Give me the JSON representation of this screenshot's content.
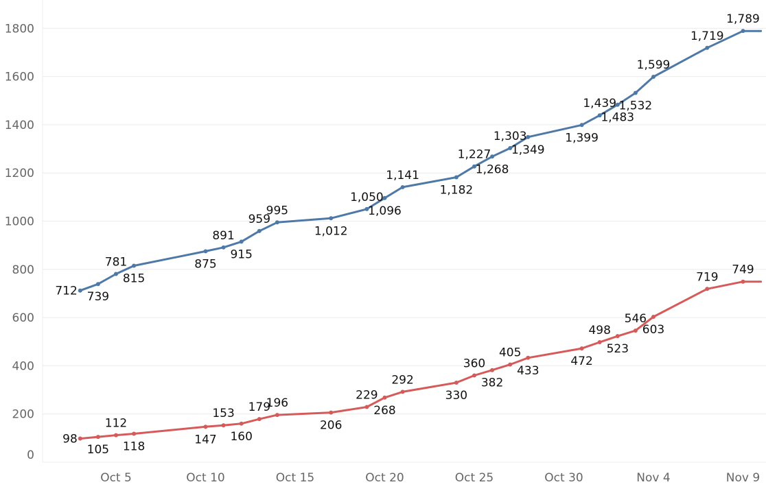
{
  "chart_data": {
    "type": "line",
    "title": "",
    "xlabel": "",
    "ylabel": "",
    "ylim": [
      0,
      1850
    ],
    "xlim": [
      "Oct 2",
      "Nov 10"
    ],
    "grid": true,
    "legend": "none",
    "y_ticks": [
      "0",
      "200",
      "400",
      "600",
      "800",
      "1000",
      "1200",
      "1400",
      "1600",
      "1800"
    ],
    "x_ticks": [
      {
        "date": "Oct 5",
        "label": "Oct 5"
      },
      {
        "date": "Oct 10",
        "label": "Oct 10"
      },
      {
        "date": "Oct 15",
        "label": "Oct 15"
      },
      {
        "date": "Oct 20",
        "label": "Oct 20"
      },
      {
        "date": "Oct 25",
        "label": "Oct 25"
      },
      {
        "date": "Oct 30",
        "label": "Oct 30"
      },
      {
        "date": "Nov 4",
        "label": "Nov 4"
      },
      {
        "date": "Nov 9",
        "label": "Nov 9"
      }
    ],
    "x": [
      "Oct 3",
      "Oct 4",
      "Oct 5",
      "Oct 6",
      "Oct 10",
      "Oct 11",
      "Oct 12",
      "Oct 13",
      "Oct 14",
      "Oct 17",
      "Oct 19",
      "Oct 20",
      "Oct 21",
      "Oct 24",
      "Oct 25",
      "Oct 26",
      "Oct 27",
      "Oct 28",
      "Oct 31",
      "Nov 1",
      "Nov 2",
      "Nov 3",
      "Nov 4",
      "Nov 7",
      "Nov 9",
      "Nov 10"
    ],
    "series": [
      {
        "color": "#4e79a7",
        "values": [
          712,
          739,
          781,
          815,
          875,
          891,
          915,
          959,
          995,
          1012,
          1050,
          1096,
          1141,
          1182,
          1227,
          1268,
          1303,
          1349,
          1399,
          1439,
          1483,
          1532,
          1599,
          1719,
          1789,
          1789
        ],
        "labels": [
          "712",
          "739",
          "781",
          "815",
          "875",
          "891",
          "915",
          "959",
          "995",
          "1,012",
          "1,050",
          "1,096",
          "1,141",
          "1,182",
          "1,227",
          "1,268",
          "1,303",
          "1,349",
          "1,399",
          "1,439",
          "1,483",
          "1,532",
          "1,599",
          "1,719",
          "1,789",
          ""
        ],
        "label_pos": [
          "left",
          "below",
          "above",
          "below",
          "below",
          "above",
          "below",
          "above",
          "above",
          "below",
          "above",
          "below",
          "above",
          "below",
          "above",
          "below",
          "above",
          "below",
          "below",
          "above",
          "below",
          "below",
          "above",
          "above",
          "above",
          "none"
        ]
      },
      {
        "color": "#d65a5a",
        "values": [
          98,
          105,
          112,
          118,
          147,
          153,
          160,
          179,
          196,
          206,
          229,
          268,
          292,
          330,
          360,
          382,
          405,
          433,
          472,
          498,
          523,
          546,
          603,
          719,
          749,
          749
        ],
        "labels": [
          "98",
          "105",
          "112",
          "118",
          "147",
          "153",
          "160",
          "179",
          "196",
          "206",
          "229",
          "268",
          "292",
          "330",
          "360",
          "382",
          "405",
          "433",
          "472",
          "498",
          "523",
          "546",
          "603",
          "719",
          "749",
          ""
        ],
        "label_pos": [
          "left",
          "below",
          "above",
          "below",
          "below",
          "above",
          "below",
          "above",
          "above",
          "below",
          "above",
          "below",
          "above",
          "below",
          "above",
          "below",
          "above",
          "below",
          "below",
          "above",
          "below",
          "above",
          "below",
          "above",
          "above",
          "none"
        ]
      }
    ]
  }
}
